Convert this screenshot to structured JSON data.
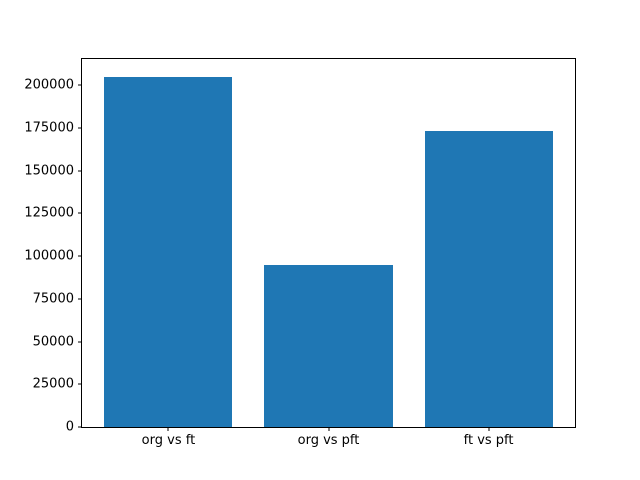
{
  "chart_data": {
    "type": "bar",
    "categories": [
      "org vs ft",
      "org vs pft",
      "ft vs pft"
    ],
    "values": [
      205000,
      95000,
      173000
    ],
    "title": "",
    "xlabel": "",
    "ylabel": "",
    "ylim": [
      0,
      215250
    ],
    "xlim": [
      -0.54,
      2.54
    ],
    "bar_width": 0.8,
    "yticks": [
      0,
      25000,
      50000,
      75000,
      100000,
      125000,
      150000,
      175000,
      200000
    ],
    "grid": false,
    "legend": null
  },
  "colors": {
    "bar": "#1f77b4",
    "background": "#ffffff",
    "spine": "#000000",
    "tick_text": "#000000"
  }
}
